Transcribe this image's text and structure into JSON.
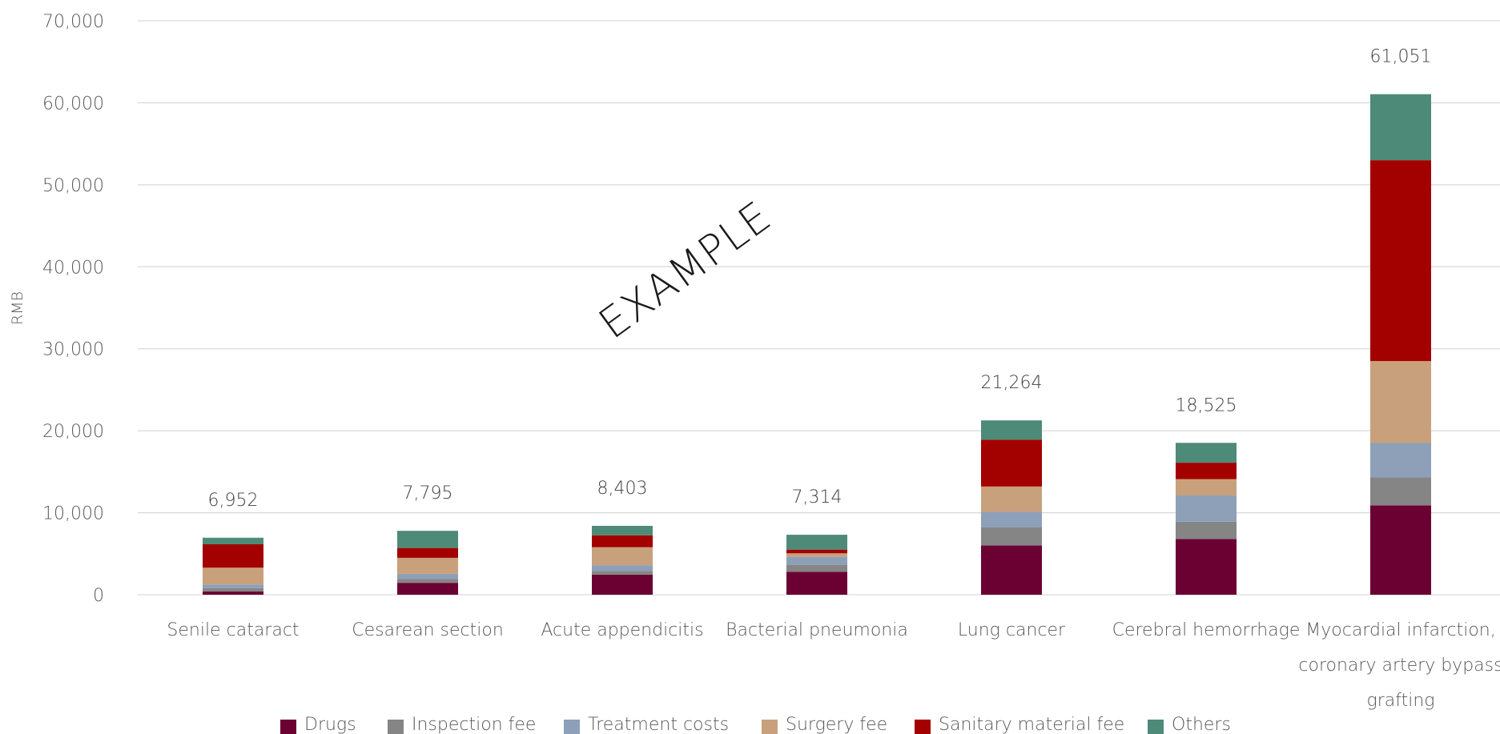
{
  "chart_data": {
    "type": "bar",
    "stacked": true,
    "title": "",
    "xlabel": "",
    "ylabel": "RMB",
    "ylim": [
      0,
      70000
    ],
    "yticks": [
      0,
      10000,
      20000,
      30000,
      40000,
      50000,
      60000,
      70000
    ],
    "ytick_labels": [
      "0",
      "10,000",
      "20,000",
      "30,000",
      "40,000",
      "50,000",
      "60,000",
      "70,000"
    ],
    "grid": true,
    "legend_position": "bottom",
    "watermark": "EXAMPLE",
    "categories": [
      [
        "Senile cataract"
      ],
      [
        "Cesarean section"
      ],
      [
        "Acute appendicitis"
      ],
      [
        "Bacterial pneumonia"
      ],
      [
        "Lung cancer"
      ],
      [
        "Cerebral hemorrhage"
      ],
      [
        "Myocardial infarction,",
        "coronary artery bypass",
        "grafting"
      ]
    ],
    "totals": [
      6952,
      7795,
      8403,
      7314,
      21264,
      18525,
      61051
    ],
    "total_labels": [
      "6,952",
      "7,795",
      "8,403",
      "7,314",
      "21,264",
      "18,525",
      "61,051"
    ],
    "series": [
      {
        "name": "Drugs",
        "color": "#6b0033",
        "values": [
          400,
          1450,
          2450,
          2800,
          6000,
          6800,
          10900
        ]
      },
      {
        "name": "Inspection fee",
        "color": "#858585",
        "values": [
          400,
          450,
          450,
          850,
          2200,
          2100,
          3400
        ]
      },
      {
        "name": "Treatment costs",
        "color": "#8da0b8",
        "values": [
          450,
          650,
          700,
          950,
          1900,
          3200,
          4200
        ]
      },
      {
        "name": "Surgery fee",
        "color": "#c8a07c",
        "values": [
          2050,
          1950,
          2200,
          450,
          3100,
          2000,
          10000
        ]
      },
      {
        "name": "Sanitary material fee",
        "color": "#a30000",
        "values": [
          2850,
          1200,
          1450,
          450,
          5700,
          2000,
          24500
        ]
      },
      {
        "name": "Others",
        "color": "#4e8a78",
        "values": [
          802,
          2095,
          1153,
          1814,
          2364,
          2425,
          8051
        ]
      }
    ]
  }
}
